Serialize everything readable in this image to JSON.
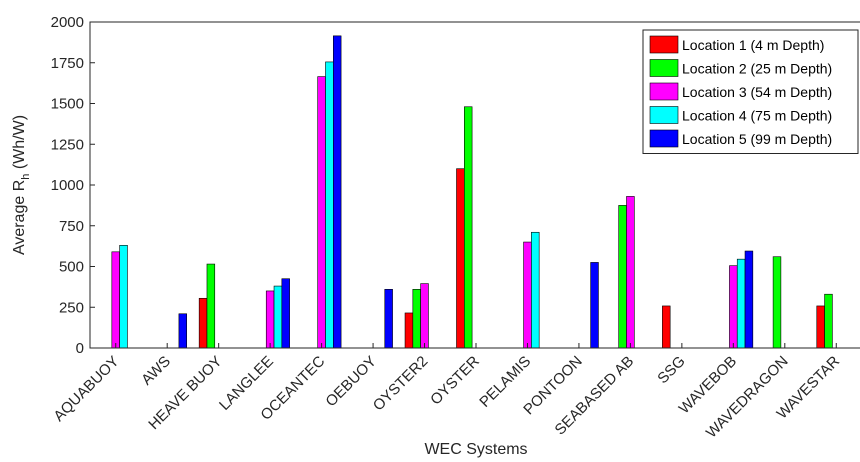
{
  "chart_data": {
    "type": "bar",
    "title": "",
    "xlabel": "WEC Systems",
    "ylabel_main": "Average R",
    "ylabel_sub": "h",
    "ylabel_unit": " (Wh/W)",
    "ylim": [
      0,
      2000
    ],
    "yticks": [
      0,
      250,
      500,
      750,
      1000,
      1250,
      1500,
      1750,
      2000
    ],
    "grid": false,
    "legend_position": "top-right",
    "categories": [
      "AQUABUOY",
      "AWS",
      "HEAVE BUOY",
      "LANGLEE",
      "OCEANTEC",
      "OEBUOY",
      "OYSTER2",
      "OYSTER",
      "PELAMIS",
      "PONTOON",
      "SEABASED AB",
      "SSG",
      "WAVEBOB",
      "WAVEDRAGON",
      "WAVESTAR"
    ],
    "series": [
      {
        "name": "Location 1 (4 m Depth)",
        "color": "#ff0000",
        "values": [
          0,
          0,
          305,
          0,
          0,
          0,
          215,
          1100,
          0,
          0,
          0,
          258,
          0,
          0,
          258
        ]
      },
      {
        "name": "Location 2 (25 m Depth)",
        "color": "#00ff00",
        "values": [
          0,
          0,
          515,
          0,
          0,
          0,
          360,
          1480,
          0,
          0,
          875,
          0,
          0,
          560,
          330
        ]
      },
      {
        "name": "Location 3 (54 m Depth)",
        "color": "#ff00ff",
        "values": [
          590,
          0,
          0,
          350,
          1665,
          0,
          395,
          0,
          650,
          0,
          930,
          0,
          505,
          0,
          0
        ]
      },
      {
        "name": "Location 4 (75 m Depth)",
        "color": "#00ffff",
        "values": [
          630,
          0,
          0,
          380,
          1755,
          0,
          0,
          0,
          710,
          0,
          0,
          0,
          545,
          0,
          0
        ]
      },
      {
        "name": "Location 5 (99 m Depth)",
        "color": "#0000ff",
        "values": [
          0,
          210,
          0,
          425,
          1915,
          360,
          0,
          0,
          0,
          525,
          0,
          0,
          595,
          0,
          0
        ]
      }
    ]
  }
}
